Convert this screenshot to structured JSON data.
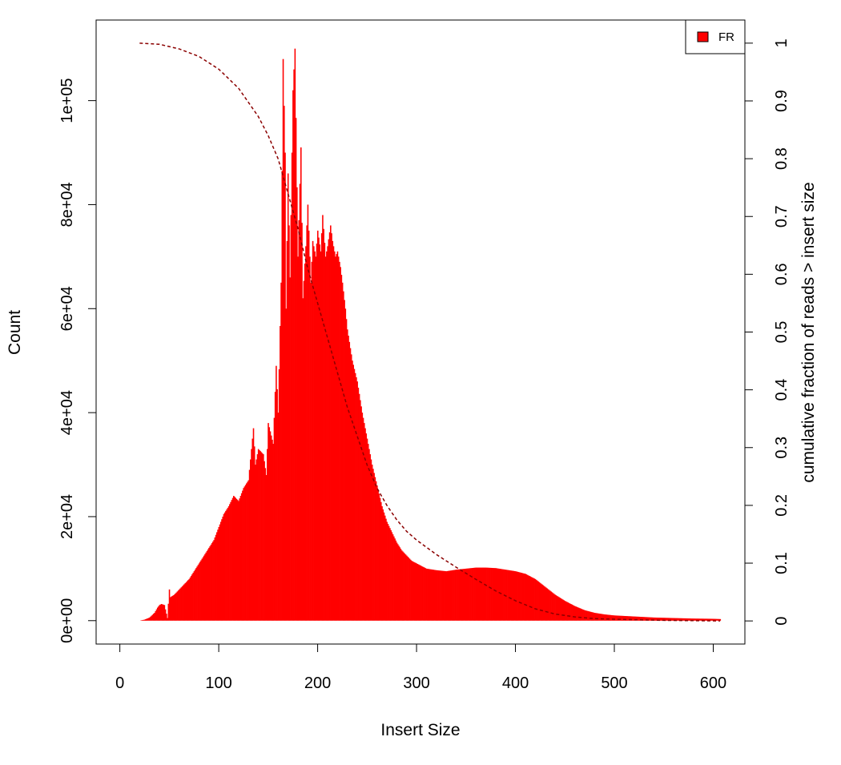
{
  "chart_data": {
    "type": "bar",
    "xlabel": "Insert Size",
    "ylabel": "Count",
    "y2label": "cumulative fraction of reads > insert size",
    "xlim": [
      -24,
      632
    ],
    "ylim": [
      -4500,
      115500
    ],
    "y2lim": [
      -0.04,
      1.04
    ],
    "x_ticks": [
      0,
      100,
      200,
      300,
      400,
      500,
      600
    ],
    "y_ticks": [
      0,
      20000,
      40000,
      60000,
      80000,
      100000
    ],
    "y_tick_labels": [
      "0e+00",
      "2e+04",
      "4e+04",
      "6e+04",
      "8e+04",
      "1e+05"
    ],
    "y2_ticks": [
      0,
      0.1,
      0.2,
      0.3,
      0.4,
      0.5,
      0.6,
      0.7,
      0.8,
      0.9,
      1
    ],
    "y2_tick_labels": [
      "0",
      "0.1",
      "0.2",
      "0.3",
      "0.4",
      "0.5",
      "0.6",
      "0.7",
      "0.8",
      "0.9",
      "1"
    ],
    "legend": {
      "position": "top-right",
      "entries": [
        "FR"
      ]
    },
    "colors": {
      "bars": "#ff0000",
      "cumulative": "#8b0000",
      "legend_fill": "#ff0000"
    },
    "series": [
      {
        "name": "FR",
        "type": "bar",
        "x": [
          20,
          25,
          30,
          35,
          38,
          40,
          42,
          45,
          48,
          50,
          51,
          55,
          60,
          65,
          70,
          75,
          80,
          85,
          90,
          95,
          100,
          105,
          110,
          115,
          120,
          125,
          130,
          135,
          137,
          140,
          145,
          148,
          150,
          155,
          158,
          160,
          163,
          165,
          167,
          168,
          170,
          172,
          175,
          177,
          180,
          183,
          185,
          188,
          190,
          193,
          195,
          198,
          200,
          203,
          205,
          208,
          210,
          213,
          215,
          218,
          220,
          223,
          225,
          228,
          230,
          235,
          240,
          245,
          250,
          255,
          260,
          265,
          270,
          275,
          280,
          285,
          290,
          295,
          300,
          310,
          320,
          330,
          340,
          350,
          360,
          370,
          380,
          390,
          400,
          410,
          420,
          430,
          440,
          450,
          460,
          470,
          480,
          490,
          500,
          520,
          540,
          560,
          580,
          600,
          607
        ],
        "y": [
          0,
          200,
          600,
          1500,
          2500,
          3000,
          3200,
          3000,
          500,
          6000,
          4500,
          5000,
          6000,
          7000,
          8000,
          9500,
          11000,
          12500,
          14000,
          15500,
          18000,
          20500,
          22000,
          24000,
          23000,
          25500,
          27000,
          37000,
          30000,
          33000,
          32000,
          28000,
          38000,
          34000,
          49000,
          40000,
          65000,
          108000,
          90000,
          60000,
          86000,
          66000,
          102000,
          110000,
          70000,
          91000,
          62000,
          72000,
          80000,
          65000,
          73000,
          70000,
          75000,
          71000,
          78000,
          70000,
          72000,
          76000,
          73000,
          70000,
          71000,
          68000,
          65000,
          60000,
          56000,
          50000,
          46000,
          40000,
          35000,
          30000,
          26000,
          22000,
          19000,
          17000,
          15000,
          13500,
          12500,
          11500,
          11000,
          10000,
          9700,
          9500,
          9800,
          10000,
          10200,
          10200,
          10100,
          9800,
          9500,
          9000,
          8000,
          6500,
          5000,
          3800,
          2800,
          2000,
          1500,
          1200,
          1000,
          800,
          600,
          500,
          400,
          350,
          300
        ]
      },
      {
        "name": "cumulative",
        "type": "line",
        "x": [
          20,
          40,
          60,
          80,
          100,
          120,
          140,
          150,
          160,
          170,
          180,
          190,
          200,
          210,
          220,
          230,
          240,
          250,
          260,
          270,
          280,
          290,
          300,
          320,
          340,
          360,
          380,
          400,
          420,
          440,
          460,
          480,
          500,
          550,
          607
        ],
        "y": [
          1.0,
          0.998,
          0.99,
          0.977,
          0.955,
          0.922,
          0.873,
          0.84,
          0.8,
          0.74,
          0.68,
          0.61,
          0.55,
          0.49,
          0.43,
          0.37,
          0.32,
          0.27,
          0.23,
          0.2,
          0.175,
          0.155,
          0.14,
          0.115,
          0.093,
          0.072,
          0.052,
          0.035,
          0.021,
          0.012,
          0.007,
          0.004,
          0.003,
          0.001,
          0.0
        ]
      }
    ]
  }
}
